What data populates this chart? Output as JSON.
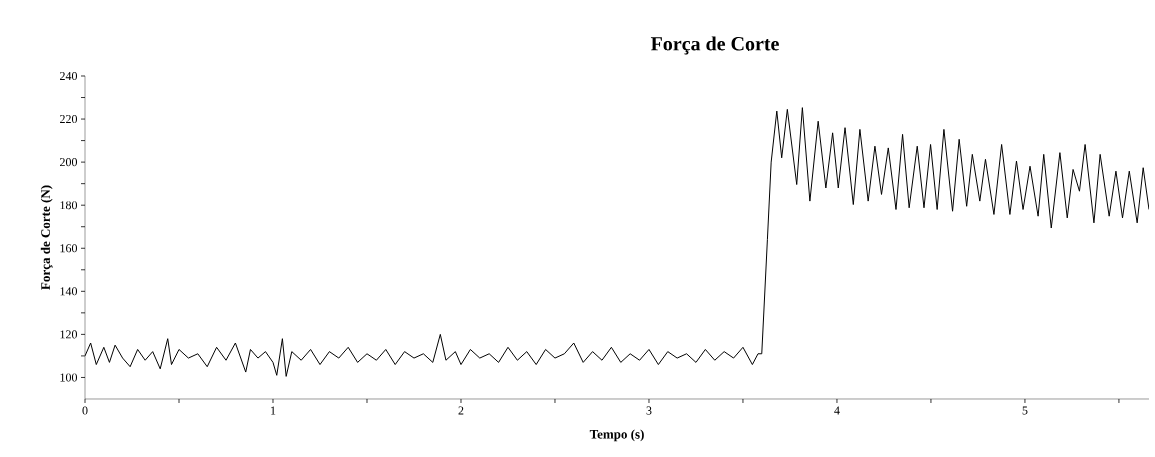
{
  "chart_data": {
    "type": "line",
    "title": "Força de Corte",
    "xlabel": "Tempo (s)",
    "ylabel": "Força de Corte (N)",
    "xlim": [
      0,
      5.66
    ],
    "ylim": [
      90,
      240
    ],
    "xticks": [
      0,
      {
        "value": 0.5,
        "label": null
      },
      1,
      {
        "value": 1.5,
        "label": null
      },
      2,
      {
        "value": 2.5,
        "label": null
      },
      3,
      {
        "value": 3.5,
        "label": null
      },
      4,
      {
        "value": 4.5,
        "label": null
      },
      5,
      {
        "value": 5.5,
        "label": null
      }
    ],
    "yticks": [
      100,
      {
        "value": 110,
        "label": null
      },
      120,
      {
        "value": 130,
        "label": null
      },
      140,
      {
        "value": 150,
        "label": null
      },
      160,
      {
        "value": 170,
        "label": null
      },
      180,
      {
        "value": 190,
        "label": null
      },
      200,
      {
        "value": 210,
        "label": null
      },
      220,
      {
        "value": 230,
        "label": null
      },
      240
    ],
    "grid": false,
    "marker": "none",
    "line_style": "solid",
    "series": [
      {
        "color": "#000000",
        "x": [
          0,
          0.03,
          0.06,
          0.1,
          0.13,
          0.16,
          0.2,
          0.24,
          0.28,
          0.32,
          0.36,
          0.4,
          0.44,
          0.46,
          0.5,
          0.55,
          0.6,
          0.65,
          0.7,
          0.75,
          0.8,
          0.855,
          0.88,
          0.92,
          0.96,
          1.0,
          1.02,
          1.05,
          1.07,
          1.1,
          1.15,
          1.2,
          1.25,
          1.3,
          1.35,
          1.4,
          1.45,
          1.5,
          1.55,
          1.6,
          1.65,
          1.7,
          1.75,
          1.8,
          1.85,
          1.89,
          1.92,
          1.97,
          2.0,
          2.05,
          2.1,
          2.15,
          2.2,
          2.25,
          2.3,
          2.35,
          2.4,
          2.45,
          2.5,
          2.55,
          2.6,
          2.65,
          2.7,
          2.75,
          2.8,
          2.85,
          2.9,
          2.95,
          3.0,
          3.05,
          3.1,
          3.15,
          3.2,
          3.25,
          3.3,
          3.35,
          3.4,
          3.45,
          3.5,
          3.55,
          3.58,
          3.6,
          3.63,
          3.65,
          3.68,
          3.706,
          3.736,
          3.786,
          3.816,
          3.856,
          3.9,
          3.941,
          3.977,
          4.007,
          4.043,
          4.087,
          4.122,
          4.166,
          4.202,
          4.237,
          4.273,
          4.314,
          4.349,
          4.384,
          4.427,
          4.463,
          4.498,
          4.533,
          4.569,
          4.615,
          4.65,
          4.69,
          4.72,
          4.76,
          4.79,
          4.835,
          4.876,
          4.92,
          4.955,
          4.99,
          5.027,
          5.07,
          5.1,
          5.14,
          5.186,
          5.225,
          5.256,
          5.29,
          5.32,
          5.367,
          5.4,
          5.448,
          5.484,
          5.519,
          5.555,
          5.597,
          5.629,
          5.66
        ],
        "values": [
          110,
          116,
          106,
          114,
          107,
          115,
          109,
          105,
          113,
          108,
          112,
          104,
          118,
          106,
          113,
          109,
          111,
          105,
          114,
          108,
          116,
          102.5,
          113,
          109,
          112,
          107,
          101,
          118,
          100.5,
          112,
          108,
          113,
          106,
          112,
          109,
          114,
          107,
          111,
          108,
          113,
          106,
          112,
          109,
          111,
          107,
          120,
          108,
          112,
          106,
          113,
          109,
          111,
          107,
          114,
          108,
          112,
          106,
          113,
          109,
          111,
          116,
          107,
          112,
          108,
          114,
          107,
          111,
          108,
          113,
          106,
          112,
          109,
          111,
          107,
          113,
          108,
          112,
          109,
          114,
          106,
          111,
          111,
          164,
          200,
          223.7,
          202,
          224.5,
          189.6,
          225.3,
          181.9,
          219,
          188,
          213.6,
          188,
          216,
          180.3,
          215.2,
          181.9,
          207.4,
          185,
          206.6,
          178,
          212.9,
          178.8,
          207.4,
          178.8,
          208.2,
          178,
          215.2,
          177.2,
          210.6,
          179.5,
          203.6,
          181.9,
          201.3,
          175.7,
          208.2,
          175.7,
          200.5,
          178,
          198.1,
          174.9,
          203.6,
          169.4,
          204.4,
          174.1,
          196.6,
          186.5,
          208.2,
          171.8,
          203.6,
          174.9,
          195.8,
          174.1,
          195.8,
          171.8,
          197.4,
          178
        ]
      }
    ]
  }
}
